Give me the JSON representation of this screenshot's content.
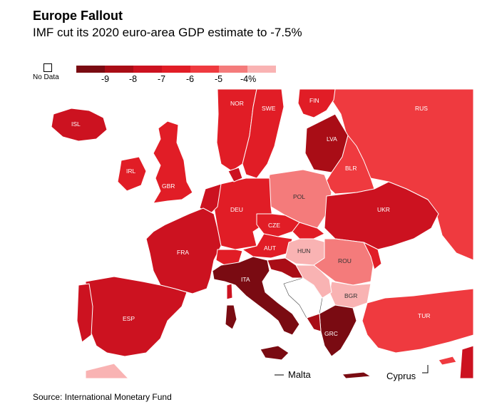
{
  "title": "Europe Fallout",
  "subtitle": "IMF cut its 2020 euro-area GDP estimate to -7.5%",
  "legend": {
    "no_data": "No Data",
    "colors": [
      "#7a0b12",
      "#a90d16",
      "#cc1220",
      "#e11d26",
      "#ef3a3f",
      "#f47b7b",
      "#f9b3b3"
    ],
    "ticks": [
      "-9",
      "-8",
      "-7",
      "-6",
      "-5",
      "-4%"
    ]
  },
  "countries": [
    {
      "code": "ISL",
      "gdp_change": -7.2,
      "color": "#cc1220"
    },
    {
      "code": "NOR",
      "gdp_change": -6.3,
      "color": "#e11d26"
    },
    {
      "code": "SWE",
      "gdp_change": -6.8,
      "color": "#e11d26"
    },
    {
      "code": "FIN",
      "gdp_change": -6.0,
      "color": "#ef3a3f"
    },
    {
      "code": "RUS",
      "gdp_change": -5.5,
      "color": "#ef3a3f"
    },
    {
      "code": "IRL",
      "gdp_change": -6.8,
      "color": "#e11d26"
    },
    {
      "code": "GBR",
      "gdp_change": -6.5,
      "color": "#e11d26"
    },
    {
      "code": "LVA",
      "gdp_change": -8.6,
      "color": "#a90d16"
    },
    {
      "code": "BLR",
      "gdp_change": -6.0,
      "color": "#ef3a3f"
    },
    {
      "code": "POL",
      "gdp_change": -4.6,
      "color": "#f47b7b"
    },
    {
      "code": "DEU",
      "gdp_change": -7.0,
      "color": "#e11d26"
    },
    {
      "code": "CZE",
      "gdp_change": -6.5,
      "color": "#e11d26"
    },
    {
      "code": "UKR",
      "gdp_change": -7.7,
      "color": "#cc1220"
    },
    {
      "code": "FRA",
      "gdp_change": -7.2,
      "color": "#cc1220"
    },
    {
      "code": "AUT",
      "gdp_change": -7.0,
      "color": "#e11d26"
    },
    {
      "code": "HUN",
      "gdp_change": -3.1,
      "color": "#f9b3b3"
    },
    {
      "code": "ROU",
      "gdp_change": -5.0,
      "color": "#f47b7b"
    },
    {
      "code": "ITA",
      "gdp_change": -9.1,
      "color": "#7a0b12"
    },
    {
      "code": "BGR",
      "gdp_change": -4.0,
      "color": "#f9b3b3"
    },
    {
      "code": "ESP",
      "gdp_change": -8.0,
      "color": "#cc1220"
    },
    {
      "code": "TUR",
      "gdp_change": -5.0,
      "color": "#ef3a3f"
    },
    {
      "code": "GRC",
      "gdp_change": -10.0,
      "color": "#7a0b12"
    }
  ],
  "places": {
    "malta": "Malta",
    "cyprus": "Cyprus"
  },
  "source": "Source: International Monetary Fund"
}
